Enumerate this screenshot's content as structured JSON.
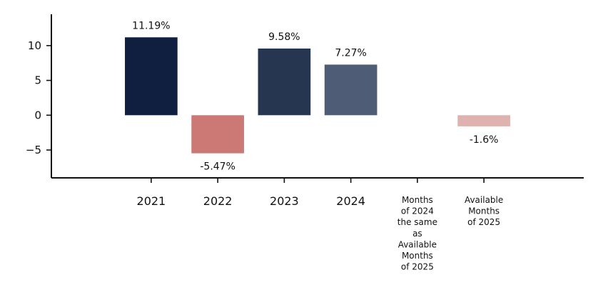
{
  "chart_data": {
    "type": "bar",
    "title": "",
    "xlabel": "",
    "ylabel": "",
    "grid": false,
    "ylim": [
      -9,
      14.5
    ],
    "yticks": [
      -5,
      0,
      5,
      10
    ],
    "ytick_labels": [
      "−5",
      "0",
      "5",
      "10"
    ],
    "xticks": [
      1,
      2,
      3,
      4,
      5,
      6
    ],
    "xlim": [
      -0.5,
      7.5
    ],
    "categories": [
      "2021",
      "2022",
      "2023",
      "2024",
      "Months\nof 2024\nthe same\nas\nAvailable\nMonths\nof 2025",
      "Available\nMonths\nof 2025"
    ],
    "bars": [
      {
        "x": 1,
        "value": 11.19,
        "label": "11.19%",
        "color": "#101f40"
      },
      {
        "x": 2,
        "value": -5.47,
        "label": "-5.47%",
        "color": "#cc7874"
      },
      {
        "x": 3,
        "value": 9.58,
        "label": "9.58%",
        "color": "#263651"
      },
      {
        "x": 4,
        "value": 7.27,
        "label": "7.27%",
        "color": "#4f5c75"
      },
      {
        "x": 6,
        "value": -1.6,
        "label": "-1.6%",
        "color": "#dfb2b0"
      }
    ]
  }
}
